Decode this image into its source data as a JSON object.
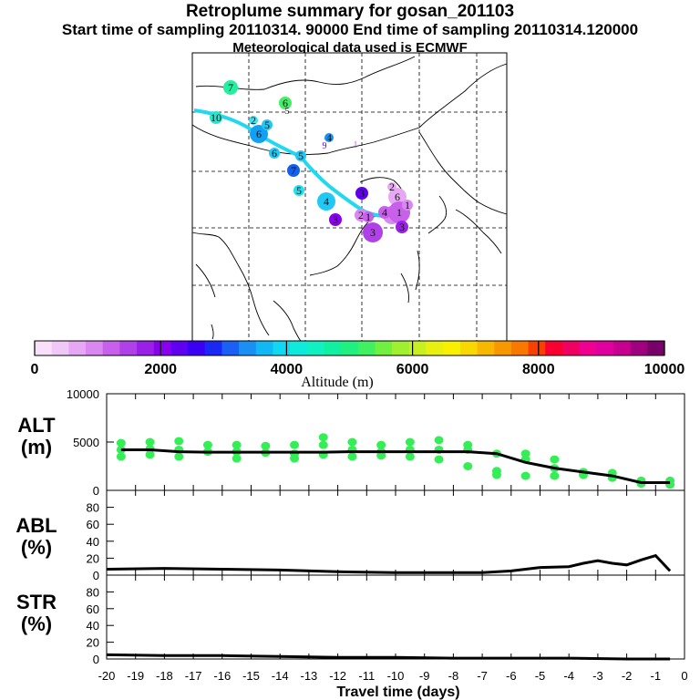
{
  "header": {
    "title": "Retroplume summary for gosan_201103",
    "sampling_line": "Start time of sampling 20110314. 90000     End time of sampling 20110314.120000",
    "met_line": "Meteorological data used is ECMWF"
  },
  "colors": {
    "plume_line": "#22d8f0",
    "alt_points": "#33ee55",
    "curve": "#000000"
  },
  "colorbar": {
    "label": "Altitude (m)",
    "ticks": [
      "0",
      "2000",
      "4000",
      "6000",
      "8000",
      "10000"
    ],
    "colors": [
      "#f8e0fa",
      "#f0c8f8",
      "#e6a8f4",
      "#d888f0",
      "#c860ec",
      "#b040e8",
      "#9a20e8",
      "#8a00ee",
      "#6000f0",
      "#3a00f4",
      "#1a28f4",
      "#1a60f4",
      "#1a90f4",
      "#10b8f4",
      "#10d8f0",
      "#10eadc",
      "#10f0c0",
      "#10f0a0",
      "#20f080",
      "#40f060",
      "#70f040",
      "#a0f030",
      "#c8f020",
      "#e8f010",
      "#f8f000",
      "#f8d800",
      "#f8b800",
      "#f89800",
      "#f87800",
      "#f84000",
      "#f80030",
      "#f00060",
      "#f00090",
      "#e000a0",
      "#c80090",
      "#a00080",
      "#780068"
    ]
  },
  "map": {
    "markers": [
      {
        "day": "7",
        "c": "#22f0a0"
      },
      {
        "day": "6",
        "c": "#44ee66"
      },
      {
        "day": "10",
        "c": "#22e8d0"
      },
      {
        "day": "6",
        "c": "#11a0f4"
      },
      {
        "day": "5",
        "c": "#22c8f4"
      },
      {
        "day": "2",
        "c": "#44e0f0"
      },
      {
        "day": "6",
        "c": "#22c8f4"
      },
      {
        "day": "5",
        "c": "#22c8f4"
      },
      {
        "day": "7",
        "c": "#1160f0"
      },
      {
        "day": "5",
        "c": "#22e0f0"
      },
      {
        "day": "4",
        "c": "#22c8f4"
      },
      {
        "day": "4",
        "c": "#1a90f4"
      },
      {
        "day": "3",
        "c": "#8a00ee"
      },
      {
        "day": "3",
        "c": "#6000f0"
      },
      {
        "day": "2",
        "c": "#d888f0"
      },
      {
        "day": "6",
        "c": "#e6a8f4"
      },
      {
        "day": "4",
        "c": "#d888f0"
      },
      {
        "day": "1",
        "c": "#c860ec"
      },
      {
        "day": "3",
        "c": "#b040e8"
      },
      {
        "day": "3",
        "c": "#9a20e8"
      },
      {
        "day": "4",
        "c": "#c860ec"
      },
      {
        "day": "1",
        "c": "#c860ec"
      },
      {
        "day": "1",
        "c": "#d888f0"
      },
      {
        "day": "2",
        "c": "#e6a8f4"
      }
    ],
    "labels": [
      "9",
      "4",
      "1",
      "5"
    ]
  },
  "chart_data": [
    {
      "type": "line",
      "name": "ALT",
      "ylabel": "ALT (m)",
      "ylim": [
        0,
        10000
      ],
      "yticks": [
        "0",
        "5000",
        "10000"
      ],
      "x": [
        -19.5,
        -18.5,
        -17.5,
        -16.5,
        -15.5,
        -14.5,
        -13.5,
        -12.5,
        -11.5,
        -10.5,
        -9.5,
        -8.5,
        -7.5,
        -6.5,
        -5.5,
        -4.5,
        -3.5,
        -2.5,
        -1.5,
        -0.5
      ],
      "curve": [
        4200,
        4200,
        4000,
        3950,
        3950,
        3950,
        3950,
        3950,
        4000,
        4000,
        4000,
        4000,
        4000,
        3800,
        2900,
        2300,
        1900,
        1500,
        800,
        800
      ],
      "points": [
        [
          -19.5,
          4900
        ],
        [
          -19.5,
          4200
        ],
        [
          -19.5,
          3500
        ],
        [
          -18.5,
          5000
        ],
        [
          -18.5,
          4300
        ],
        [
          -18.5,
          3700
        ],
        [
          -17.5,
          5100
        ],
        [
          -17.5,
          4200
        ],
        [
          -17.5,
          3500
        ],
        [
          -16.5,
          4700
        ],
        [
          -16.5,
          4000
        ],
        [
          -15.5,
          4700
        ],
        [
          -15.5,
          4000
        ],
        [
          -15.5,
          3300
        ],
        [
          -14.5,
          4600
        ],
        [
          -14.5,
          3900
        ],
        [
          -13.5,
          4700
        ],
        [
          -13.5,
          3800
        ],
        [
          -13.5,
          3300
        ],
        [
          -12.5,
          5500
        ],
        [
          -12.5,
          4700
        ],
        [
          -12.5,
          3700
        ],
        [
          -11.5,
          5000
        ],
        [
          -11.5,
          4200
        ],
        [
          -11.5,
          3500
        ],
        [
          -10.5,
          4700
        ],
        [
          -10.5,
          4000
        ],
        [
          -10.5,
          3600
        ],
        [
          -9.5,
          5000
        ],
        [
          -9.5,
          4200
        ],
        [
          -9.5,
          3500
        ],
        [
          -8.5,
          5200
        ],
        [
          -8.5,
          4200
        ],
        [
          -8.5,
          3200
        ],
        [
          -7.5,
          4700
        ],
        [
          -7.5,
          4200
        ],
        [
          -7.5,
          2500
        ],
        [
          -6.5,
          3800
        ],
        [
          -6.5,
          2000
        ],
        [
          -6.5,
          1600
        ],
        [
          -5.5,
          3800
        ],
        [
          -5.5,
          3200
        ],
        [
          -5.5,
          1500
        ],
        [
          -4.5,
          3200
        ],
        [
          -4.5,
          2300
        ],
        [
          -4.5,
          1500
        ],
        [
          -3.5,
          1900
        ],
        [
          -3.5,
          1600
        ],
        [
          -2.5,
          1800
        ],
        [
          -2.5,
          1300
        ],
        [
          -1.5,
          1000
        ],
        [
          -1.5,
          700
        ],
        [
          -0.5,
          1000
        ],
        [
          -0.5,
          600
        ]
      ]
    },
    {
      "type": "line",
      "name": "ABL",
      "ylabel": "ABL (%)",
      "ylim": [
        0,
        100
      ],
      "yticks": [
        "0",
        "20",
        "40",
        "60",
        "80"
      ],
      "x": [
        -20,
        -18,
        -16,
        -14,
        -12,
        -10,
        -8,
        -7,
        -6,
        -5,
        -4,
        -3.5,
        -3,
        -2.5,
        -2,
        -1.5,
        -1,
        -0.5
      ],
      "values": [
        7,
        8,
        7,
        6,
        4,
        3,
        3,
        3,
        5,
        9,
        10,
        14,
        17,
        14,
        12,
        18,
        23,
        5
      ]
    },
    {
      "type": "line",
      "name": "STR",
      "ylabel": "STR (%)",
      "ylim": [
        0,
        100
      ],
      "yticks": [
        "0",
        "20",
        "40",
        "60",
        "80"
      ],
      "x": [
        -20,
        -18,
        -16,
        -14,
        -12,
        -10,
        -8,
        -6,
        -4,
        -2,
        -0.5
      ],
      "values": [
        5,
        4,
        4,
        3,
        2,
        2,
        1,
        1,
        1,
        0,
        0
      ]
    }
  ],
  "xaxis": {
    "label": "Travel time (days)",
    "ticks": [
      "-20",
      "-19",
      "-18",
      "-17",
      "-16",
      "-15",
      "-14",
      "-13",
      "-12",
      "-11",
      "-10",
      "-9",
      "-8",
      "-7",
      "-6",
      "-5",
      "-4",
      "-3",
      "-2",
      "-1",
      "0"
    ]
  },
  "panel_labels": {
    "alt": [
      "ALT",
      "(m)"
    ],
    "abl": [
      "ABL",
      "(%)"
    ],
    "str": [
      "STR",
      "(%)"
    ]
  }
}
